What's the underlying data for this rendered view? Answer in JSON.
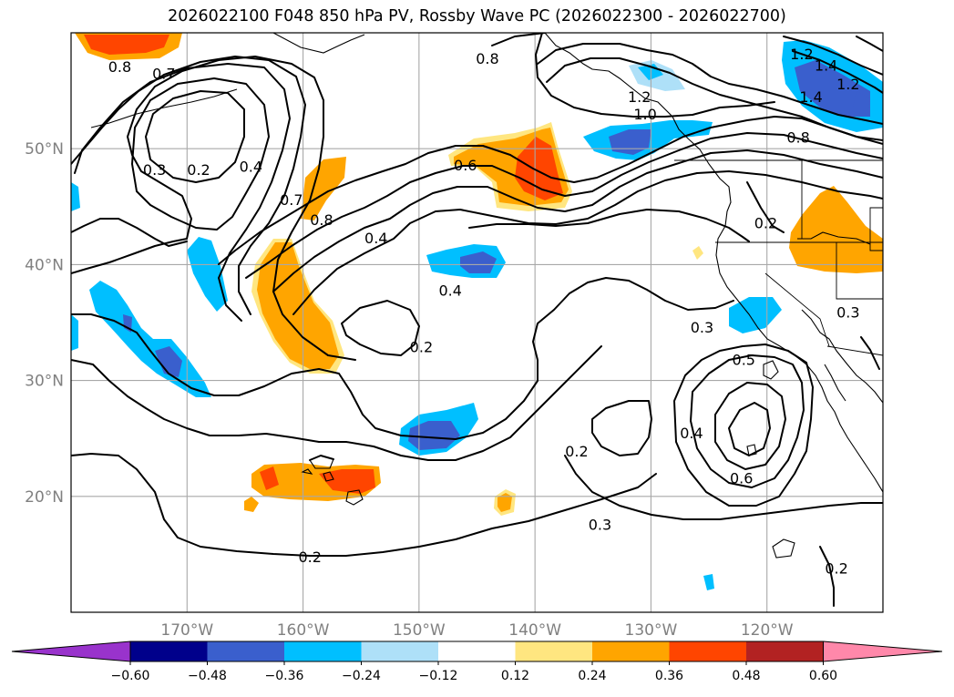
{
  "title": "2026022100 F048 850 hPa PV, Rossby Wave PC (2026022300 - 2026022700)",
  "map": {
    "lon_range": [
      -180,
      -110
    ],
    "lat_range": [
      10,
      60
    ],
    "lat_ticks": [
      {
        "lat": 50,
        "label": "50°N"
      },
      {
        "lat": 40,
        "label": "40°N"
      },
      {
        "lat": 30,
        "label": "30°N"
      },
      {
        "lat": 20,
        "label": "20°N"
      }
    ],
    "lon_ticks": [
      {
        "lon": -170,
        "label": "170°W"
      },
      {
        "lon": -160,
        "label": "160°W"
      },
      {
        "lon": -150,
        "label": "150°W"
      },
      {
        "lon": -140,
        "label": "140°W"
      },
      {
        "lon": -130,
        "label": "130°W"
      },
      {
        "lon": -120,
        "label": "120°W"
      }
    ],
    "grid": true
  },
  "contour_labels": [
    {
      "text": "0.8",
      "lon": -175.8,
      "lat": 57.1
    },
    {
      "text": "0.7",
      "lon": -172.0,
      "lat": 56.5
    },
    {
      "text": "0.8",
      "lon": -144.1,
      "lat": 57.8
    },
    {
      "text": "1.2",
      "lon": -131.0,
      "lat": 54.5
    },
    {
      "text": "1.0",
      "lon": -130.5,
      "lat": 53.0
    },
    {
      "text": "1.2",
      "lon": -117.0,
      "lat": 58.2
    },
    {
      "text": "1.4",
      "lon": -114.9,
      "lat": 57.2
    },
    {
      "text": "1.2",
      "lon": -113.0,
      "lat": 55.6
    },
    {
      "text": "1.4",
      "lon": -116.2,
      "lat": 54.5
    },
    {
      "text": "0.8",
      "lon": -117.3,
      "lat": 51.0
    },
    {
      "text": "0.3",
      "lon": -172.8,
      "lat": 48.2
    },
    {
      "text": "0.2",
      "lon": -169.0,
      "lat": 48.2
    },
    {
      "text": "0.4",
      "lon": -164.5,
      "lat": 48.5
    },
    {
      "text": "0.7",
      "lon": -161.0,
      "lat": 45.6
    },
    {
      "text": "0.6",
      "lon": -146.0,
      "lat": 48.6
    },
    {
      "text": "0.8",
      "lon": -158.4,
      "lat": 43.9
    },
    {
      "text": "0.4",
      "lon": -153.7,
      "lat": 42.3
    },
    {
      "text": "0.2",
      "lon": -120.1,
      "lat": 43.6
    },
    {
      "text": "0.4",
      "lon": -147.3,
      "lat": 37.8
    },
    {
      "text": "0.3",
      "lon": -113.0,
      "lat": 35.9
    },
    {
      "text": "0.3",
      "lon": -125.6,
      "lat": 34.6
    },
    {
      "text": "0.2",
      "lon": -149.8,
      "lat": 32.9
    },
    {
      "text": "0.5",
      "lon": -122.0,
      "lat": 31.8
    },
    {
      "text": "0.4",
      "lon": -126.5,
      "lat": 25.5
    },
    {
      "text": "0.2",
      "lon": -136.4,
      "lat": 23.9
    },
    {
      "text": "0.6",
      "lon": -122.2,
      "lat": 21.6
    },
    {
      "text": "0.3",
      "lon": -134.4,
      "lat": 17.6
    },
    {
      "text": "0.2",
      "lon": -159.4,
      "lat": 14.8
    },
    {
      "text": "0.2",
      "lon": -114.0,
      "lat": 13.8
    }
  ],
  "colorbar": {
    "ticks": [
      "−0.60",
      "−0.48",
      "−0.36",
      "−0.24",
      "−0.12",
      "0.12",
      "0.24",
      "0.36",
      "0.48",
      "0.60"
    ],
    "colors": [
      "#9933cc",
      "#00008b",
      "#3a5fcd",
      "#00bfff",
      "#aee0f8",
      "#ffffff",
      "#ffe680",
      "#ffa500",
      "#ff4500",
      "#b22222",
      "#ff88aa"
    ]
  }
}
